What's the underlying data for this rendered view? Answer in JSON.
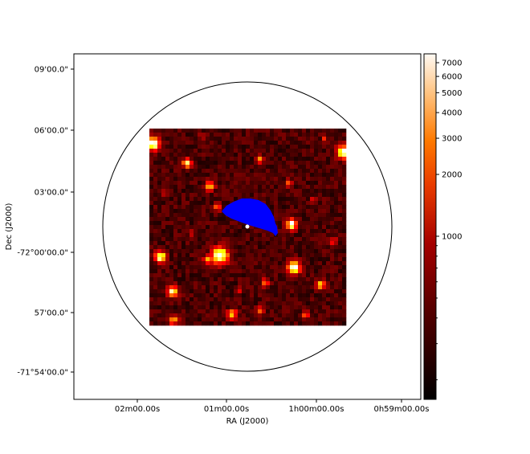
{
  "chart_data": {
    "type": "heatmap",
    "title": "",
    "xlabel": "RA (J2000)",
    "ylabel": "Dec (J2000)",
    "x_ticks": [
      "02m00.00s",
      "01m00.00s",
      "1h00m00.00s",
      "0h59m00.00s"
    ],
    "y_ticks": [
      "09'00.0\"",
      "06'00.0\"",
      "03'00.0\"",
      "-72°00'00.0\"",
      "57'00.0\"",
      "-71°54'00.0\""
    ],
    "colorbar": {
      "colormap": "gist_heat",
      "scale": "log",
      "ticks": [
        1000,
        2000,
        3000,
        4000,
        5000,
        6000,
        7000
      ],
      "tick_labels": [
        "1000",
        "2000",
        "3000",
        "4000",
        "5000",
        "6000",
        "7000"
      ]
    },
    "overlays": {
      "circle_color": "#000000",
      "region_color": "#0000ff",
      "marker_color": "#ffffff"
    },
    "grid": false,
    "background_color": "#ffffff"
  }
}
